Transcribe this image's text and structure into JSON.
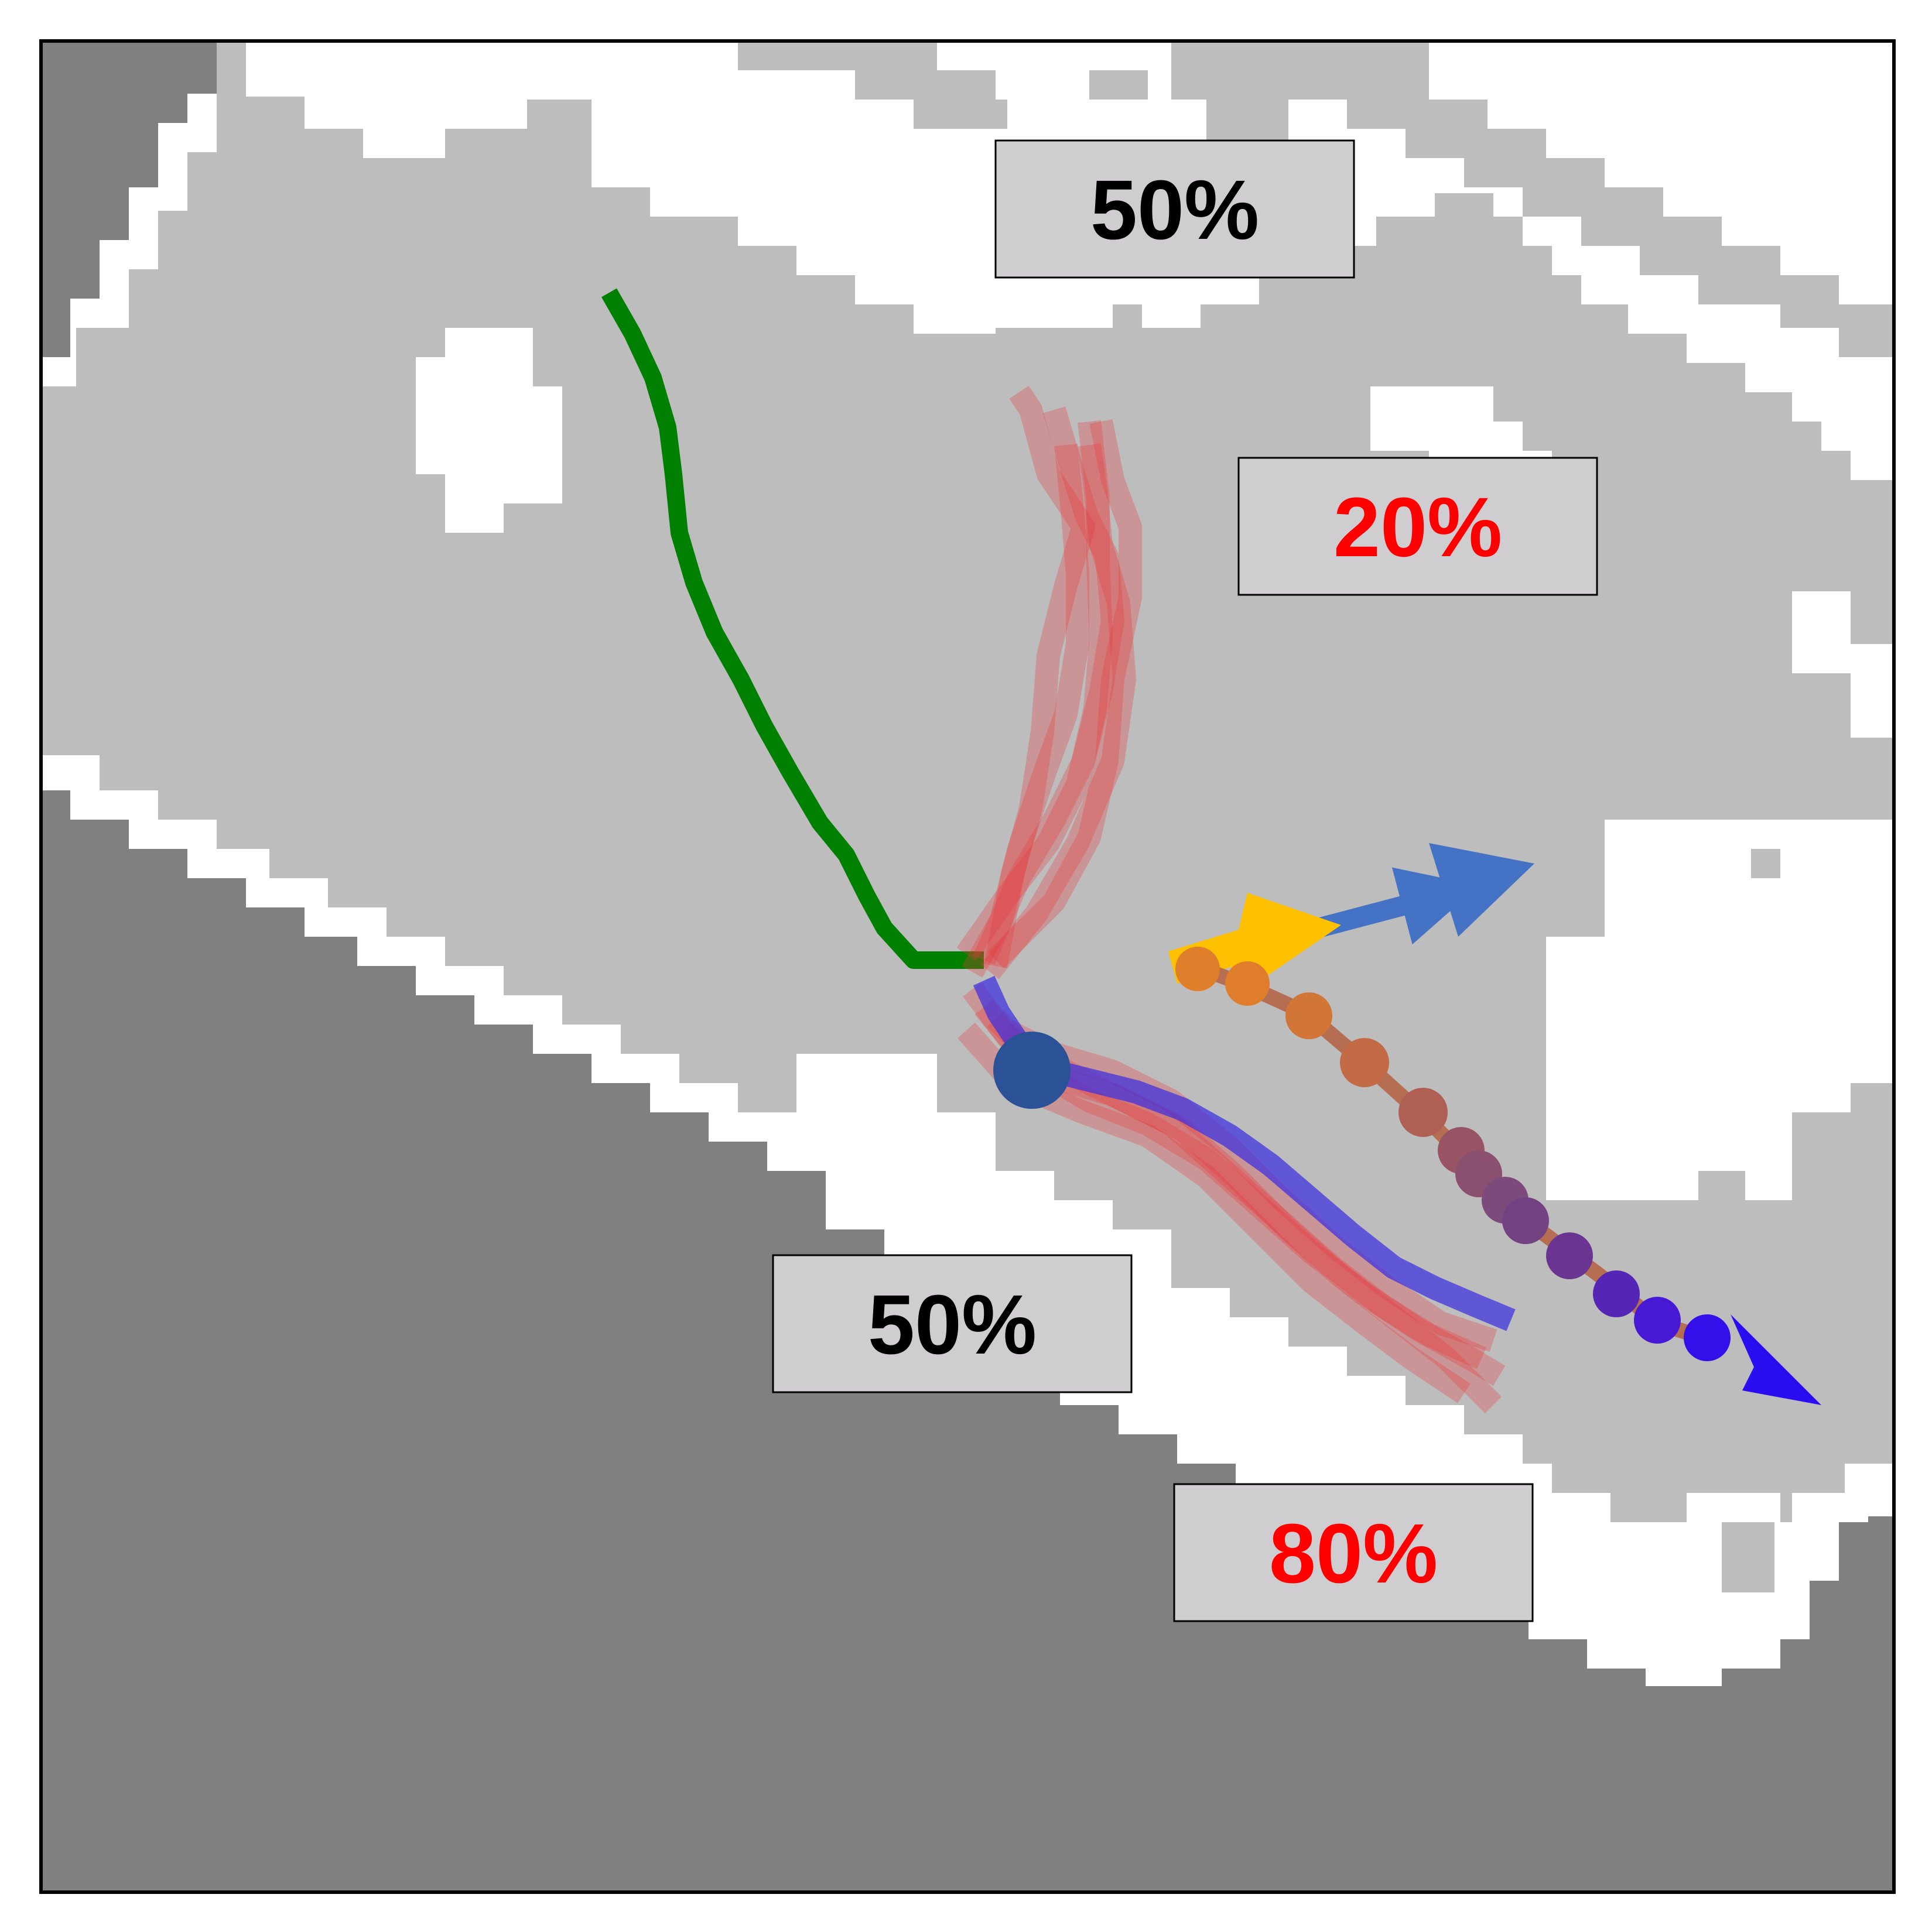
{
  "labels": {
    "top_black": "50%",
    "upper_right_red": "20%",
    "lower_black": "50%",
    "lower_right_red": "80%"
  },
  "colors": {
    "obstacle_dark": "#808080",
    "free_region": "#bdbdbd",
    "background": "#ffffff",
    "past_path": "#008000",
    "predicted_samples": "#e8373b",
    "predicted_main": "#3b2fe0",
    "agent_marker": "#2b5296",
    "label_fill": "#cfcdcf",
    "label_text_black": "#000000",
    "label_text_red": "#ff0000",
    "arrow_blue": "#4472c4",
    "arrow_yellow": "#ffc000",
    "gradient_start": "#e07f2b",
    "gradient_end": "#2a0df0"
  }
}
